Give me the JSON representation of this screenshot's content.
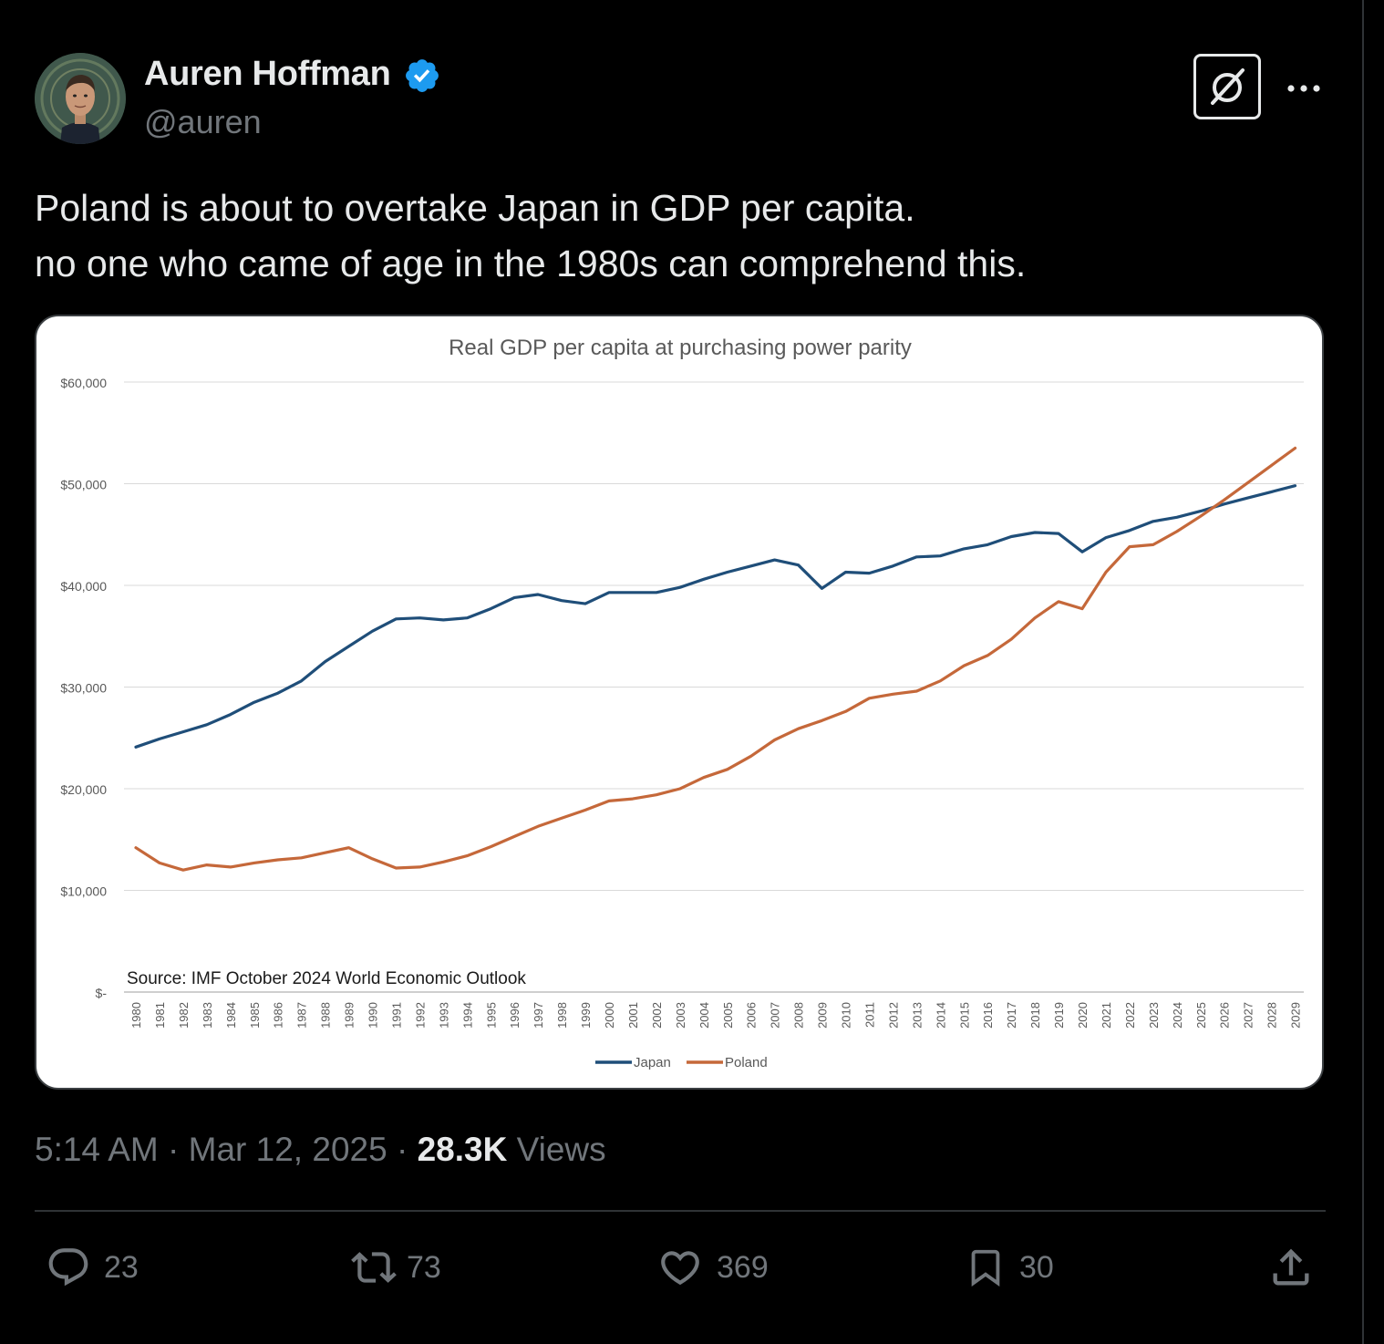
{
  "author": {
    "name": "Auren Hoffman",
    "handle": "@auren"
  },
  "tweet": {
    "text": "Poland is about to overtake Japan in GDP per capita.\nno one who came of age in the 1980s can comprehend this."
  },
  "meta": {
    "time": "5:14 AM",
    "sep1": " · ",
    "date": "Mar 12, 2025",
    "sep2": " · ",
    "views_count": "28.3K",
    "views_label": " Views"
  },
  "actions": {
    "replies": "23",
    "reposts": "73",
    "likes": "369",
    "bookmarks": "30"
  },
  "icons": {
    "verified": "verified-badge-icon",
    "grok": "grok-icon",
    "more": "more-icon",
    "reply": "reply-icon",
    "repost": "repost-icon",
    "like": "heart-icon",
    "bookmark": "bookmark-icon",
    "share": "share-icon"
  },
  "colors": {
    "background": "#000000",
    "verified": "#1d9bf0",
    "japan": "#1f4e79",
    "poland": "#c5683a"
  },
  "chart_data": {
    "type": "line",
    "title": "Real GDP per capita at purchasing power parity",
    "annotation": "Source: IMF October 2024 World Economic Outlook",
    "ylim": [
      0,
      60000
    ],
    "y_ticks": [
      0,
      10000,
      20000,
      30000,
      40000,
      50000,
      60000
    ],
    "y_tick_labels": [
      "$-",
      "$10,000",
      "$20,000",
      "$30,000",
      "$40,000",
      "$50,000",
      "$60,000"
    ],
    "grid": true,
    "legend": "bottom",
    "x": [
      "1980",
      "1981",
      "1982",
      "1983",
      "1984",
      "1985",
      "1986",
      "1987",
      "1988",
      "1989",
      "1990",
      "1991",
      "1992",
      "1993",
      "1994",
      "1995",
      "1996",
      "1997",
      "1998",
      "1999",
      "2000",
      "2001",
      "2002",
      "2003",
      "2004",
      "2005",
      "2006",
      "2007",
      "2008",
      "2009",
      "2010",
      "2011",
      "2012",
      "2013",
      "2014",
      "2015",
      "2016",
      "2017",
      "2018",
      "2019",
      "2020",
      "2021",
      "2022",
      "2023",
      "2024",
      "2025",
      "2026",
      "2027",
      "2028",
      "2029"
    ],
    "series": [
      {
        "name": "Japan",
        "color": "#1f4e79",
        "values": [
          24100,
          24900,
          25600,
          26300,
          27300,
          28500,
          29400,
          30600,
          32500,
          34000,
          35500,
          36700,
          36800,
          36600,
          36800,
          37700,
          38800,
          39100,
          38500,
          38200,
          39300,
          39300,
          39300,
          39800,
          40600,
          41300,
          41900,
          42500,
          42000,
          39700,
          41300,
          41200,
          41900,
          42800,
          42900,
          43600,
          44000,
          44800,
          45200,
          45100,
          43300,
          44700,
          45400,
          46300,
          46700,
          47300,
          48000,
          48600,
          49200,
          49800
        ]
      },
      {
        "name": "Poland",
        "color": "#c5683a",
        "values": [
          14200,
          12700,
          12000,
          12500,
          12300,
          12700,
          13000,
          13200,
          13700,
          14200,
          13100,
          12200,
          12300,
          12800,
          13400,
          14300,
          15300,
          16300,
          17100,
          17900,
          18800,
          19000,
          19400,
          20000,
          21100,
          21900,
          23200,
          24800,
          25900,
          26700,
          27600,
          28900,
          29300,
          29600,
          30600,
          32100,
          33100,
          34700,
          36800,
          38400,
          37700,
          41300,
          43800,
          44000,
          45300,
          46800,
          48400,
          50100,
          51800,
          53500
        ]
      }
    ]
  }
}
